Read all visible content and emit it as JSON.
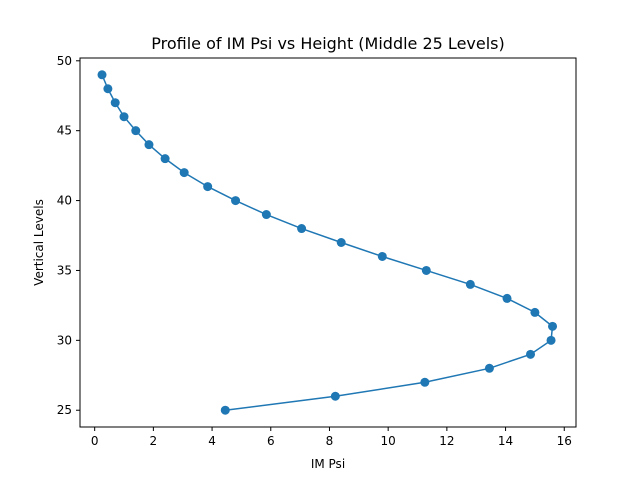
{
  "chart_data": {
    "type": "line",
    "title": "Profile of IM Psi vs Height (Middle 25 Levels)",
    "xlabel": "IM Psi",
    "ylabel": "Vertical Levels",
    "xlim": [
      -0.5,
      16.4
    ],
    "ylim": [
      23.8,
      50.2
    ],
    "xticks": [
      0,
      2,
      4,
      6,
      8,
      10,
      12,
      14,
      16
    ],
    "yticks": [
      25,
      30,
      35,
      40,
      45,
      50
    ],
    "grid": false,
    "color": "#1f77b4",
    "series": [
      {
        "x": [
          4.45,
          8.2,
          11.25,
          13.45,
          14.85,
          15.55,
          15.6,
          15.0,
          14.05,
          12.8,
          11.3,
          9.8,
          8.4,
          7.05,
          5.85,
          4.8,
          3.85,
          3.05,
          2.4,
          1.85,
          1.4,
          1.0,
          0.7,
          0.45,
          0.25
        ],
        "y": [
          25,
          26,
          27,
          28,
          29,
          30,
          31,
          32,
          33,
          34,
          35,
          36,
          37,
          38,
          39,
          40,
          41,
          42,
          43,
          44,
          45,
          46,
          47,
          48,
          49
        ]
      }
    ]
  }
}
